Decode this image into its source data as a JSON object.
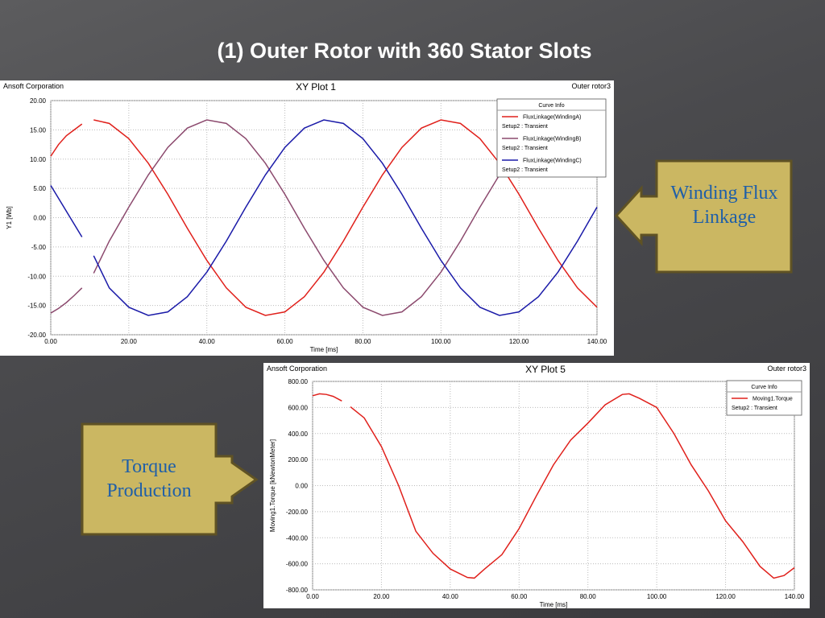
{
  "title": "(1) Outer Rotor with 360 Stator Slots",
  "callouts": [
    "Winding Flux Linkage",
    "Torque Production"
  ],
  "chart_data": [
    {
      "type": "line",
      "title": "XY Plot 1",
      "company": "Ansoft Corporation",
      "design": "Outer rotor3",
      "legend_title": "Curve Info",
      "x_label": "Time [ms]",
      "y_label": "Y1 [Wb]",
      "x": [
        0,
        2,
        4,
        6,
        8,
        9.5,
        11,
        15,
        20,
        25,
        30,
        35,
        40,
        45,
        50,
        55,
        60,
        65,
        70,
        75,
        80,
        85,
        90,
        95,
        100,
        105,
        110,
        115,
        120,
        125,
        130,
        135,
        140
      ],
      "series": [
        {
          "name": "FluxLinkage(WindingA)",
          "setup": "Setup2 : Transient",
          "color": "#e0201b",
          "values": [
            10.5,
            12.5,
            14,
            15,
            16,
            null,
            16.7,
            16.1,
            13.5,
            9.3,
            4.0,
            -1.8,
            -7.3,
            -12.0,
            -15.3,
            -16.7,
            -16.1,
            -13.5,
            -9.3,
            -4.0,
            1.8,
            7.3,
            12.0,
            15.3,
            16.7,
            16.1,
            13.5,
            9.3,
            4.0,
            -1.8,
            -7.3,
            -12.0,
            -15.3
          ]
        },
        {
          "name": "FluxLinkage(WindingB)",
          "setup": "Setup2 : Transient",
          "color": "#8c4a6e",
          "values": [
            -16.3,
            -15.5,
            -14.5,
            -13.3,
            -12.0,
            null,
            -9.5,
            -4.0,
            1.8,
            7.3,
            12.0,
            15.3,
            16.7,
            16.1,
            13.5,
            9.3,
            4.0,
            -1.8,
            -7.3,
            -12.0,
            -15.3,
            -16.7,
            -16.1,
            -13.5,
            -9.3,
            -4.0,
            1.8,
            7.3,
            12.0,
            15.3,
            16.7,
            16.1,
            13.5
          ]
        },
        {
          "name": "FluxLinkage(WindingC)",
          "setup": "Setup2 : Transient",
          "color": "#1a1aa8",
          "values": [
            5.5,
            3.3,
            1.1,
            -1.1,
            -3.3,
            null,
            -6.5,
            -12.0,
            -15.3,
            -16.7,
            -16.1,
            -13.5,
            -9.3,
            -4.0,
            1.8,
            7.3,
            12.0,
            15.3,
            16.7,
            16.1,
            13.5,
            9.3,
            4.0,
            -1.8,
            -7.3,
            -12.0,
            -15.3,
            -16.7,
            -16.1,
            -13.5,
            -9.3,
            -4.0,
            1.8
          ]
        }
      ],
      "xlim": [
        0,
        140
      ],
      "xticks": [
        {
          "value": 0,
          "label": "0.00"
        },
        {
          "value": 20,
          "label": "20.00"
        },
        {
          "value": 40,
          "label": "40.00"
        },
        {
          "value": 60,
          "label": "60.00"
        },
        {
          "value": 80,
          "label": "80.00"
        },
        {
          "value": 100,
          "label": "100.00"
        },
        {
          "value": 120,
          "label": "120.00"
        },
        {
          "value": 140,
          "label": "140.00"
        }
      ],
      "ylim": [
        -20,
        20
      ],
      "yticks": [
        {
          "value": -20,
          "label": "-20.00"
        },
        {
          "value": -15,
          "label": "-15.00"
        },
        {
          "value": -10,
          "label": "-10.00"
        },
        {
          "value": -5,
          "label": "-5.00"
        },
        {
          "value": 0,
          "label": "0.00"
        },
        {
          "value": 5,
          "label": "5.00"
        },
        {
          "value": 10,
          "label": "10.00"
        },
        {
          "value": 15,
          "label": "15.00"
        },
        {
          "value": 20,
          "label": "20.00"
        }
      ],
      "grid": true
    },
    {
      "type": "line",
      "title": "XY Plot 5",
      "company": "Ansoft Corporation",
      "design": "Outer rotor3",
      "legend_title": "Curve Info",
      "x_label": "Time [ms]",
      "y_label": "Moving1.Torque [kNewtonMeter]",
      "x": [
        0,
        2,
        4,
        6,
        8.5,
        9.5,
        11,
        15,
        20,
        25,
        30,
        35,
        40,
        45,
        47,
        50,
        55,
        60,
        65,
        70,
        75,
        80,
        85,
        90,
        92,
        95,
        100,
        105,
        110,
        115,
        120,
        125,
        130,
        134,
        137,
        140
      ],
      "series": [
        {
          "name": "Moving1.Torque",
          "setup": "Setup2 : Transient",
          "color": "#e0201b",
          "values": [
            690,
            705,
            700,
            685,
            650,
            null,
            605,
            520,
            300,
            0,
            -350,
            -520,
            -640,
            -705,
            -710,
            -640,
            -530,
            -330,
            -80,
            160,
            350,
            480,
            620,
            700,
            705,
            670,
            600,
            400,
            160,
            -40,
            -270,
            -430,
            -620,
            -710,
            -690,
            -630
          ]
        }
      ],
      "xlim": [
        0,
        140
      ],
      "xticks": [
        {
          "value": 0,
          "label": "0.00"
        },
        {
          "value": 20,
          "label": "20.00"
        },
        {
          "value": 40,
          "label": "40.00"
        },
        {
          "value": 60,
          "label": "60.00"
        },
        {
          "value": 80,
          "label": "80.00"
        },
        {
          "value": 100,
          "label": "100.00"
        },
        {
          "value": 120,
          "label": "120.00"
        },
        {
          "value": 140,
          "label": "140.00"
        }
      ],
      "ylim": [
        -800,
        800
      ],
      "yticks": [
        {
          "value": -800,
          "label": "-800.00"
        },
        {
          "value": -600,
          "label": "-600.00"
        },
        {
          "value": -400,
          "label": "-400.00"
        },
        {
          "value": -200,
          "label": "-200.00"
        },
        {
          "value": 0,
          "label": "0.00"
        },
        {
          "value": 200,
          "label": "200.00"
        },
        {
          "value": 400,
          "label": "400.00"
        },
        {
          "value": 600,
          "label": "600.00"
        },
        {
          "value": 800,
          "label": "800.00"
        }
      ],
      "grid": true
    }
  ]
}
